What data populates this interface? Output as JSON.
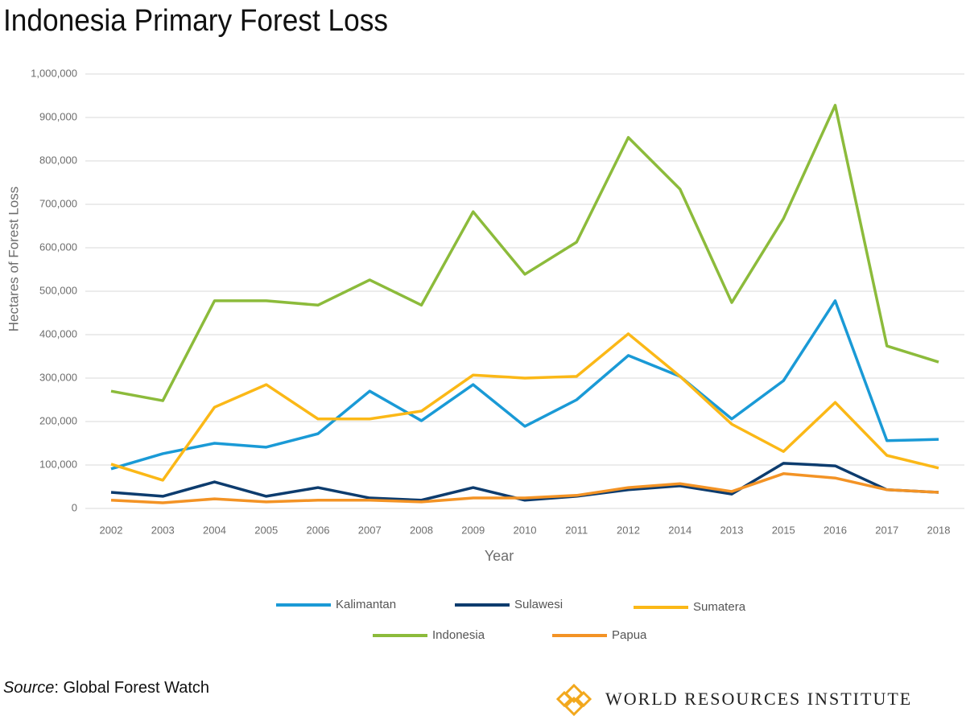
{
  "chart_data": {
    "type": "line",
    "title": "Indonesia Primary Forest Loss",
    "x_label": "Year",
    "y_label": "Hectares of Forest Loss",
    "categories": [
      "2002",
      "2003",
      "2004",
      "2005",
      "2006",
      "2007",
      "2008",
      "2009",
      "2010",
      "2011",
      "2012",
      "2014",
      "2013",
      "2015",
      "2016",
      "2017",
      "2018"
    ],
    "series": [
      {
        "name": "Kalimantan",
        "color": "#1a9ad6",
        "values": [
          91000,
          126000,
          150000,
          141000,
          172000,
          270000,
          202000,
          285000,
          189000,
          250000,
          352000,
          304000,
          206000,
          294000,
          478000,
          156000,
          159000
        ]
      },
      {
        "name": "Sulawesi",
        "color": "#0d3c6e",
        "values": [
          37000,
          28000,
          61000,
          28000,
          48000,
          24000,
          19000,
          48000,
          19000,
          28000,
          43000,
          52000,
          33000,
          104000,
          98000,
          43000,
          37000
        ]
      },
      {
        "name": "Sumatera",
        "color": "#fbb817",
        "values": [
          102000,
          65000,
          233000,
          285000,
          206000,
          206000,
          224000,
          307000,
          300000,
          304000,
          402000,
          304000,
          194000,
          131000,
          244000,
          122000,
          93000
        ]
      },
      {
        "name": "Indonesia",
        "color": "#8cbb3b",
        "values": [
          270000,
          248000,
          478000,
          478000,
          468000,
          526000,
          468000,
          683000,
          539000,
          613000,
          854000,
          735000,
          474000,
          667000,
          928000,
          374000,
          337000
        ]
      },
      {
        "name": "Papua",
        "color": "#f39325",
        "values": [
          19000,
          13000,
          22000,
          15000,
          19000,
          19000,
          15000,
          24000,
          24000,
          30000,
          48000,
          57000,
          39000,
          80000,
          70000,
          43000,
          37000
        ]
      }
    ],
    "ylim": [
      0,
      1000000
    ],
    "yticks": [
      0,
      {
        "value": 100000,
        "label": "100,000"
      },
      {
        "value": 200000,
        "label": "200,000"
      },
      {
        "value": 300000,
        "label": "300,000"
      },
      {
        "value": 400000,
        "label": "400,000"
      },
      {
        "value": 500000,
        "label": "500,000"
      },
      {
        "value": 600000,
        "label": "600,000"
      },
      {
        "value": 700000,
        "label": "700,000"
      },
      {
        "value": 800000,
        "label": "800,000"
      },
      {
        "value": 900000,
        "label": "900,000"
      },
      {
        "value": 1000000,
        "label": "1,000,000"
      }
    ],
    "grid": true,
    "legend": "bottom",
    "source_label": "Source",
    "source": ": Global Forest Watch",
    "brand": "WORLD RESOURCES INSTITUTE"
  }
}
